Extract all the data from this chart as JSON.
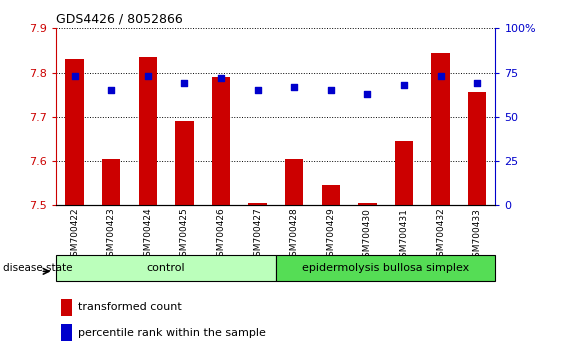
{
  "title": "GDS4426 / 8052866",
  "samples": [
    "GSM700422",
    "GSM700423",
    "GSM700424",
    "GSM700425",
    "GSM700426",
    "GSM700427",
    "GSM700428",
    "GSM700429",
    "GSM700430",
    "GSM700431",
    "GSM700432",
    "GSM700433"
  ],
  "bar_values": [
    7.83,
    7.605,
    7.835,
    7.69,
    7.79,
    7.505,
    7.605,
    7.545,
    7.505,
    7.645,
    7.845,
    7.755
  ],
  "dot_values": [
    73,
    65,
    73,
    69,
    72,
    65,
    67,
    65,
    63,
    68,
    73,
    69
  ],
  "ylim_left": [
    7.5,
    7.9
  ],
  "ylim_right": [
    0,
    100
  ],
  "yticks_left": [
    7.5,
    7.6,
    7.7,
    7.8,
    7.9
  ],
  "yticks_right": [
    0,
    25,
    50,
    75,
    100
  ],
  "bar_color": "#cc0000",
  "dot_color": "#0000cc",
  "bar_bottom": 7.5,
  "control_label": "control",
  "disease_label": "epidermolysis bullosa simplex",
  "control_color": "#bbffbb",
  "disease_color": "#55dd55",
  "disease_state_label": "disease state",
  "legend_bar_label": "transformed count",
  "legend_dot_label": "percentile rank within the sample",
  "left_axis_color": "#cc0000",
  "right_axis_color": "#0000cc"
}
